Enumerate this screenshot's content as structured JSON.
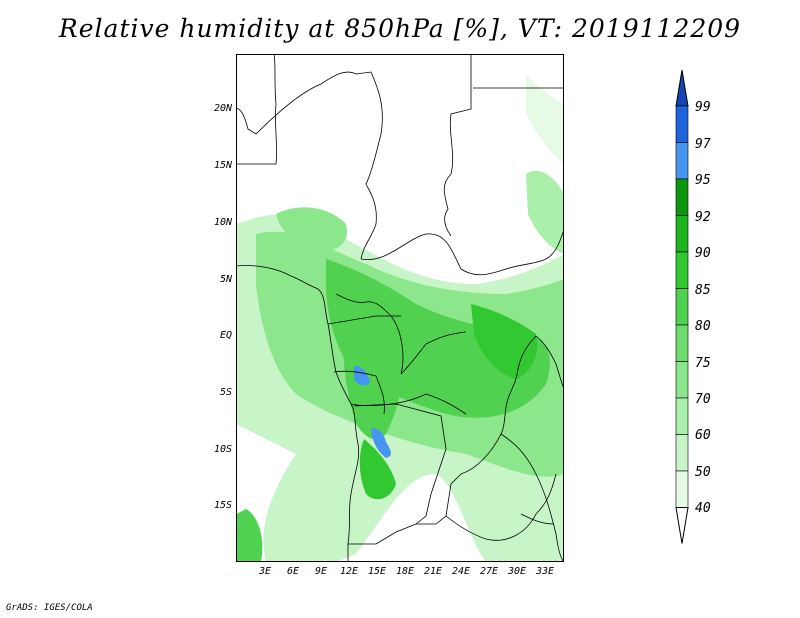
{
  "title": "Relative humidity at 850hPa [%], VT: 2019112209",
  "credit": "GrADS: IGES/COLA",
  "lat_labels": [
    "20N",
    "15N",
    "10N",
    "5N",
    "EQ",
    "5S",
    "10S",
    "15S"
  ],
  "lon_labels": [
    "3E",
    "6E",
    "9E",
    "12E",
    "15E",
    "18E",
    "21E",
    "24E",
    "27E",
    "30E",
    "33E"
  ],
  "colorbar": {
    "levels": [
      "40",
      "50",
      "60",
      "70",
      "75",
      "80",
      "85",
      "90",
      "92",
      "95",
      "97",
      "99"
    ],
    "colors": [
      "#ffffff",
      "#e6fae6",
      "#c8f5c8",
      "#aaf0aa",
      "#8ce68c",
      "#6edc6e",
      "#50d250",
      "#32c832",
      "#1eb41e",
      "#0f960f",
      "#4696f0",
      "#1e64dc",
      "#1446b4"
    ]
  }
}
